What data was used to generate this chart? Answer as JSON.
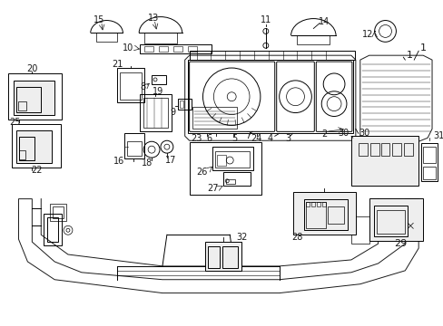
{
  "bg_color": "#ffffff",
  "line_color": "#1a1a1a",
  "fig_width": 4.89,
  "fig_height": 3.6,
  "dpi": 100,
  "gray_fill": "#d8d8d8",
  "light_gray": "#eeeeee"
}
